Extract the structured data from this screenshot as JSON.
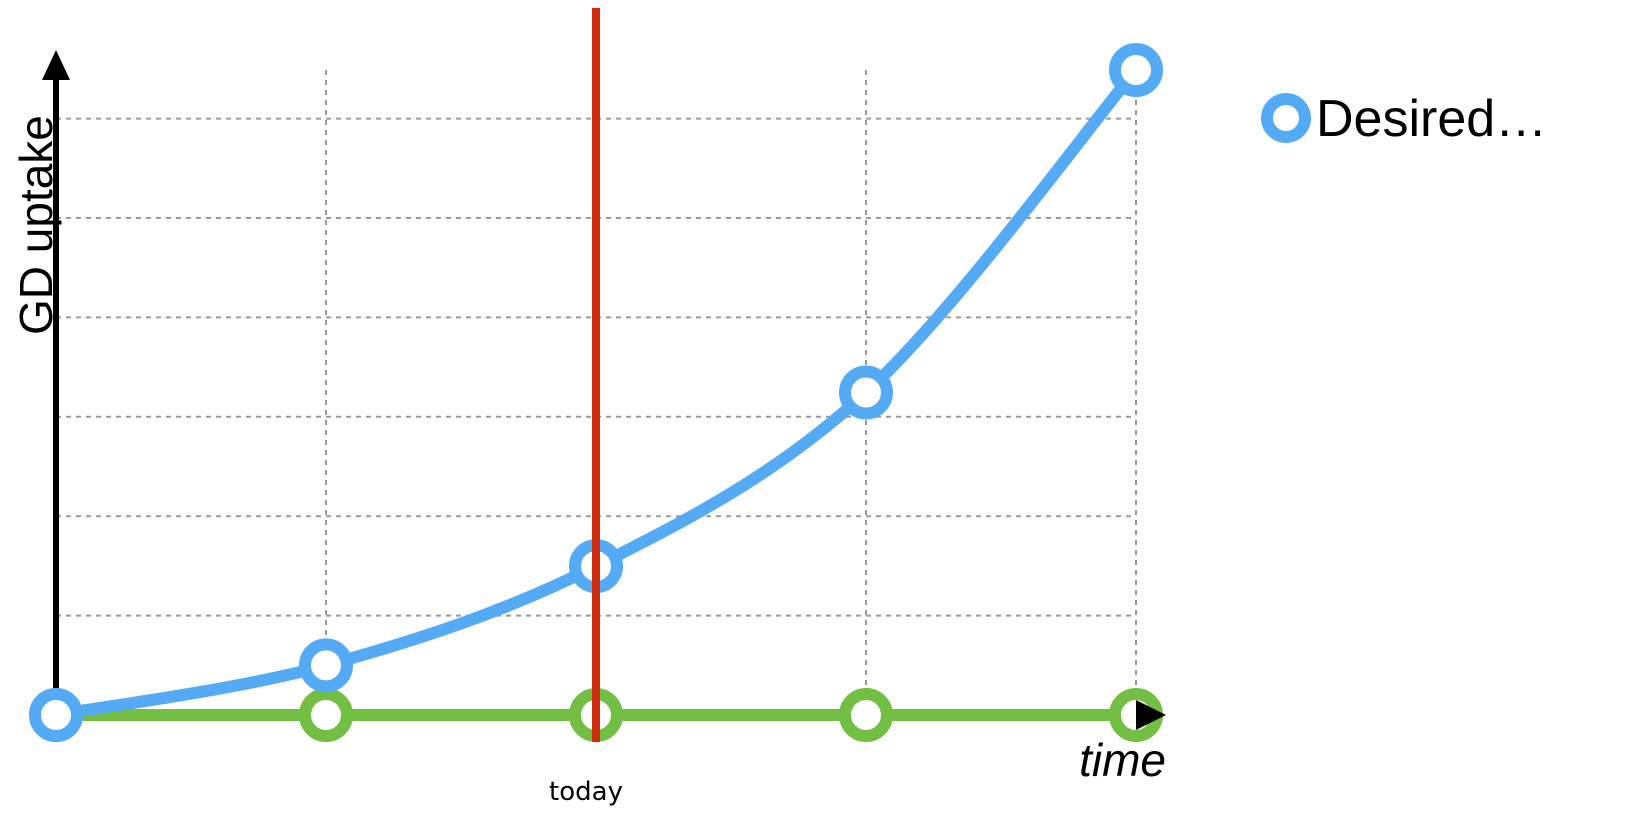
{
  "chart_data": {
    "type": "line",
    "title": "",
    "xlabel": "time",
    "ylabel": "GD uptake",
    "x": [
      0,
      1,
      2,
      3,
      4
    ],
    "xlim": [
      0,
      4
    ],
    "ylim": [
      0,
      6.5
    ],
    "grid": true,
    "legend_position": "top-right",
    "series": [
      {
        "name": "Desired…",
        "color": "#55aaf5",
        "values": [
          0,
          0.5,
          1.5,
          3.25,
          6.5
        ],
        "show_in_legend": true
      },
      {
        "name": "",
        "color": "#72bf44",
        "values": [
          0,
          0,
          0,
          0,
          0
        ],
        "show_in_legend": false
      }
    ],
    "vline": {
      "x": 2,
      "color": "#cc2a0d",
      "label": "today"
    }
  }
}
